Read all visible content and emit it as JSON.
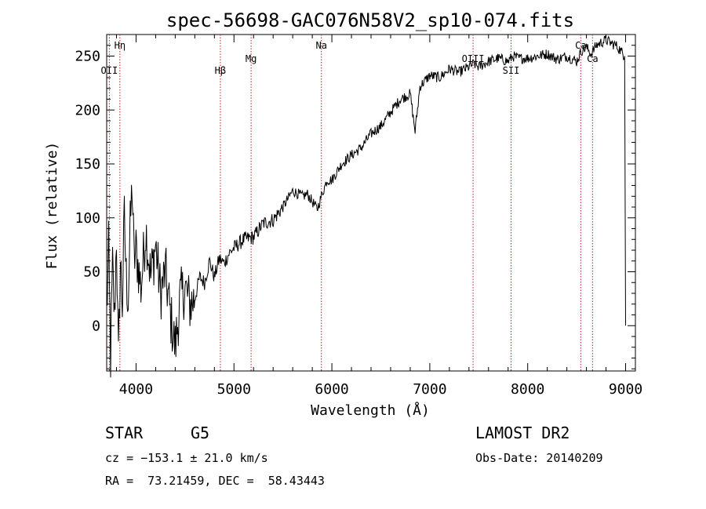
{
  "chart_data": {
    "type": "line",
    "title": "spec-56698-GAC076N58V2_sp10-074.fits",
    "xlabel": "Wavelength (Å)",
    "ylabel": "Flux (relative)",
    "xlim": [
      3700,
      9100
    ],
    "ylim": [
      -42,
      270
    ],
    "xticks": [
      4000,
      5000,
      6000,
      7000,
      8000,
      9000
    ],
    "yticks": [
      0,
      50,
      100,
      150,
      200,
      250
    ],
    "grid": false,
    "series": [
      {
        "x": [
          3700,
          3720,
          3740,
          3760,
          3780,
          3800,
          3820,
          3840,
          3860,
          3880,
          3900,
          3920,
          3940,
          3960,
          3980,
          4000,
          4050,
          4100,
          4150,
          4200,
          4250,
          4300,
          4350,
          4400,
          4450,
          4500,
          4550,
          4600,
          4650,
          4700,
          4750,
          4800,
          4850,
          4900,
          4950,
          5000,
          5100,
          5200,
          5300,
          5400,
          5500,
          5600,
          5700,
          5750,
          5800,
          5850,
          5900,
          5950,
          6000,
          6100,
          6200,
          6300,
          6400,
          6500,
          6600,
          6700,
          6800,
          6850,
          6900,
          7000,
          7100,
          7200,
          7300,
          7400,
          7450,
          7500,
          7600,
          7700,
          7800,
          7850,
          7900,
          8000,
          8100,
          8200,
          8300,
          8400,
          8500,
          8550,
          8600,
          8650,
          8700,
          8800,
          8850,
          8900,
          8950,
          8990,
          9000
        ],
        "y": [
          10,
          70,
          -30,
          55,
          5,
          85,
          -35,
          60,
          20,
          100,
          45,
          25,
          90,
          130,
          60,
          70,
          35,
          90,
          45,
          75,
          30,
          50,
          10,
          -20,
          25,
          35,
          20,
          25,
          45,
          40,
          60,
          45,
          62,
          58,
          67,
          72,
          80,
          82,
          95,
          98,
          110,
          125,
          120,
          122,
          115,
          108,
          122,
          135,
          135,
          150,
          158,
          165,
          178,
          185,
          198,
          210,
          215,
          180,
          222,
          232,
          230,
          238,
          235,
          240,
          243,
          240,
          245,
          248,
          245,
          250,
          248,
          248,
          250,
          252,
          247,
          250,
          245,
          255,
          258,
          252,
          260,
          265,
          262,
          260,
          255,
          250,
          0
        ]
      }
    ],
    "lines": [
      {
        "name": "OII",
        "x": 3727
      },
      {
        "name": "Hη",
        "x": 3835
      },
      {
        "name": "Hβ",
        "x": 4861
      },
      {
        "name": "Mg",
        "x": 5175
      },
      {
        "name": "Na",
        "x": 5893
      },
      {
        "name": "OIII",
        "x": 7442
      },
      {
        "name": "SII",
        "x": 7830
      },
      {
        "name": "Ca",
        "x": 8542
      },
      {
        "name": "Ca",
        "x": 8662
      }
    ]
  },
  "info": {
    "class": "STAR",
    "subclass": "G5",
    "survey": "LAMOST DR2",
    "cz": "cz = −153.1 ± 21.0 km/s",
    "obs_date": "Obs-Date: 20140209",
    "coords": "RA =  73.21459, DEC =  58.43443"
  }
}
